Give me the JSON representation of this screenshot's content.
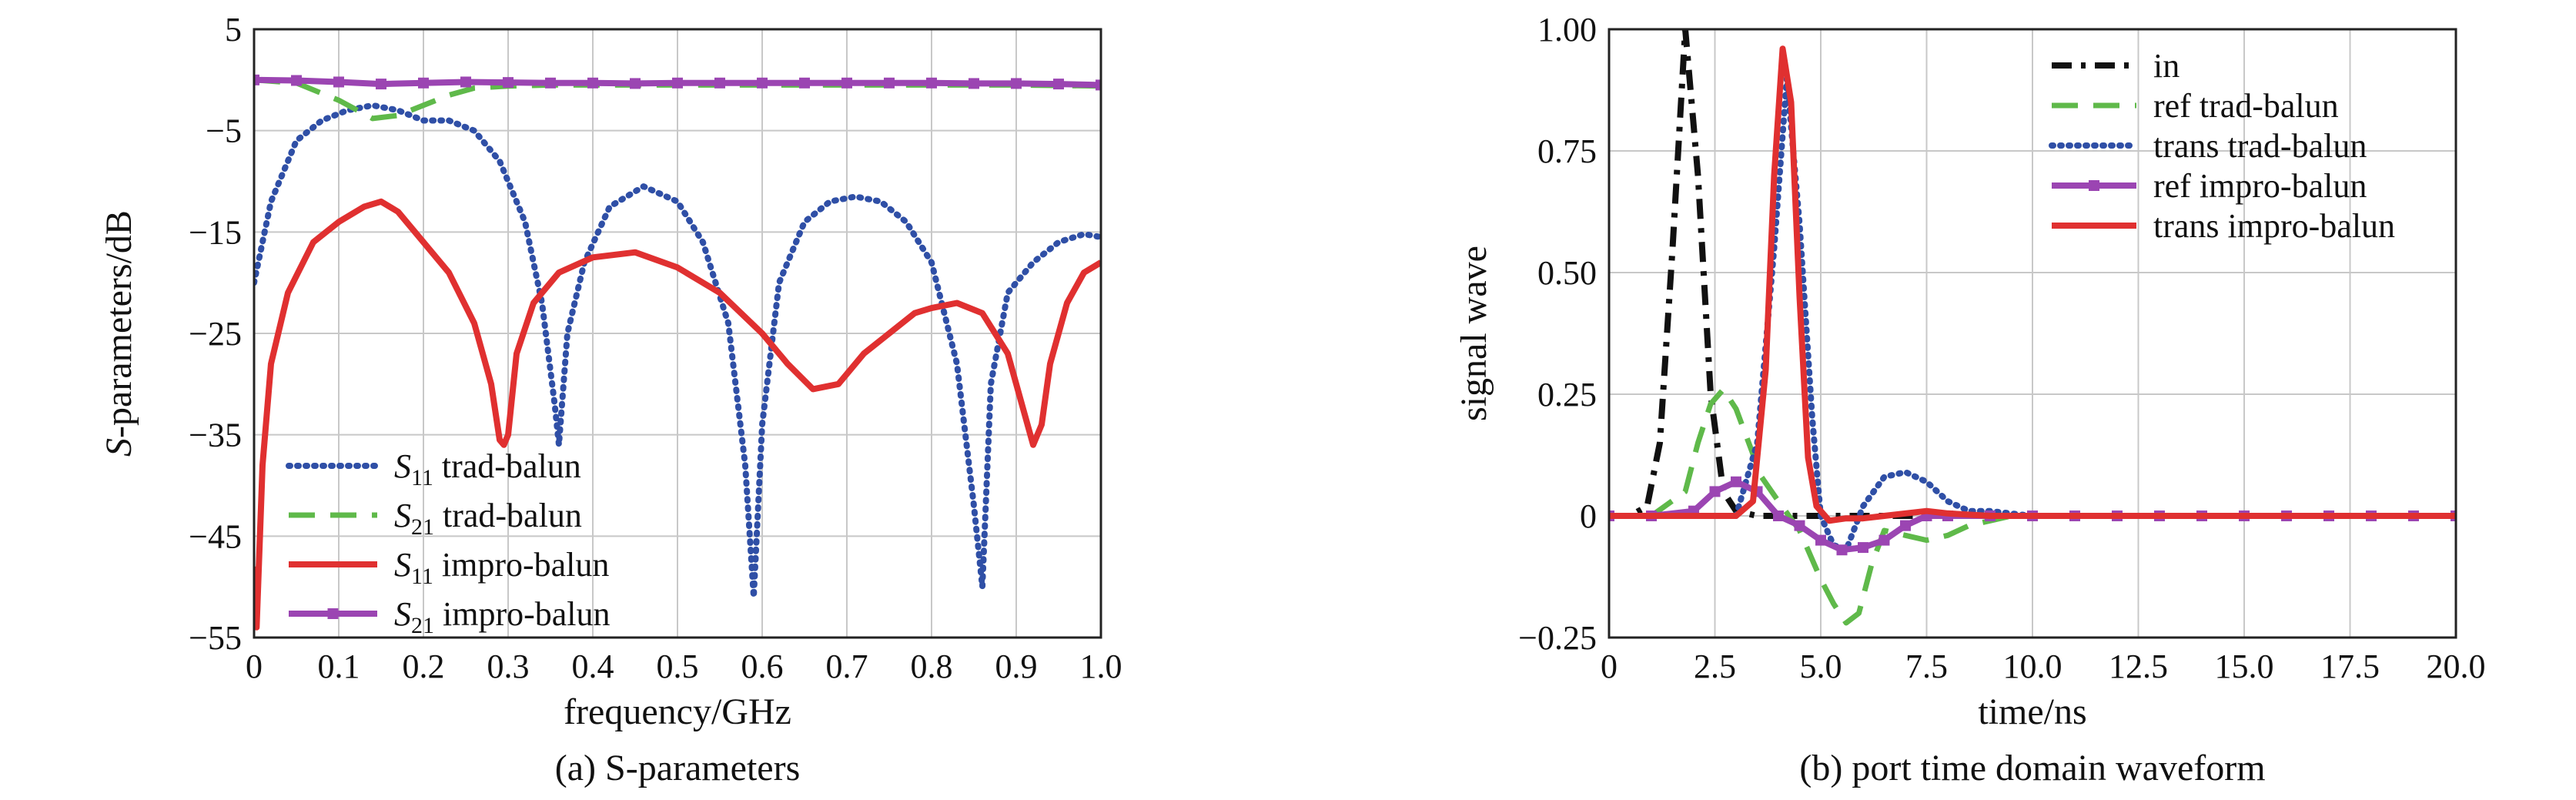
{
  "chart_data": [
    {
      "type": "line",
      "caption": "(a) S-parameters",
      "xlabel": "frequency/GHz",
      "ylabel": "S-parameters/dB",
      "ylabel_italic_part": "S",
      "ylabel_rest": "-parameters/dB",
      "xlim": [
        0,
        1.0
      ],
      "ylim": [
        -55,
        5
      ],
      "xticks": [
        0,
        0.1,
        0.2,
        0.3,
        0.4,
        0.5,
        0.6,
        0.7,
        0.8,
        0.9,
        1.0
      ],
      "xtick_labels": [
        "0",
        "0.1",
        "0.2",
        "0.3",
        "0.4",
        "0.5",
        "0.6",
        "0.7",
        "0.8",
        "0.9",
        "1.0"
      ],
      "yticks": [
        5,
        -5,
        -15,
        -25,
        -35,
        -45,
        -55
      ],
      "ytick_labels": [
        "5",
        "−5",
        "−15",
        "−25",
        "−35",
        "−45",
        "−55"
      ],
      "grid": true,
      "legend_position": "bottom-left",
      "series": [
        {
          "name": "S11 trad-balun",
          "legend_sym": "S",
          "legend_sub": "11",
          "legend_rest": "trad-balun",
          "color": "#2f4fa6",
          "style": "dotted",
          "x": [
            0,
            0.02,
            0.05,
            0.08,
            0.11,
            0.14,
            0.17,
            0.2,
            0.23,
            0.26,
            0.29,
            0.32,
            0.34,
            0.355,
            0.36,
            0.37,
            0.39,
            0.42,
            0.46,
            0.5,
            0.53,
            0.56,
            0.58,
            0.59,
            0.6,
            0.62,
            0.65,
            0.68,
            0.71,
            0.74,
            0.77,
            0.8,
            0.83,
            0.85,
            0.86,
            0.87,
            0.89,
            0.92,
            0.95,
            0.98,
            1.0
          ],
          "y": [
            -20,
            -12,
            -6,
            -4,
            -3,
            -2.5,
            -3,
            -4,
            -4,
            -5,
            -8,
            -14,
            -22,
            -32,
            -36,
            -25,
            -18,
            -12.5,
            -10.5,
            -12,
            -16,
            -24,
            -38,
            -51,
            -34,
            -20,
            -14,
            -12,
            -11.5,
            -12,
            -14,
            -18,
            -28,
            -42,
            -50,
            -30,
            -21,
            -18,
            -16,
            -15.2,
            -15.5
          ]
        },
        {
          "name": "S21 trad-balun",
          "legend_sym": "S",
          "legend_sub": "21",
          "legend_rest": "trad-balun",
          "color": "#5fb94a",
          "style": "dashed",
          "x": [
            0,
            0.05,
            0.1,
            0.14,
            0.17,
            0.2,
            0.23,
            0.26,
            0.3,
            0.35,
            0.4,
            0.5,
            0.6,
            0.7,
            0.8,
            0.9,
            1.0
          ],
          "y": [
            0,
            -0.3,
            -2,
            -3.8,
            -3.5,
            -2.5,
            -1.5,
            -0.8,
            -0.6,
            -0.5,
            -0.5,
            -0.5,
            -0.5,
            -0.5,
            -0.5,
            -0.5,
            -0.6
          ]
        },
        {
          "name": "S11 impro-balun",
          "legend_sym": "S",
          "legend_sub": "11",
          "legend_rest": "impro-balun",
          "color": "#e03030",
          "style": "solid",
          "x": [
            0,
            0.003,
            0.01,
            0.02,
            0.04,
            0.07,
            0.1,
            0.13,
            0.15,
            0.17,
            0.2,
            0.23,
            0.26,
            0.28,
            0.29,
            0.295,
            0.3,
            0.31,
            0.33,
            0.36,
            0.4,
            0.45,
            0.5,
            0.55,
            0.6,
            0.63,
            0.66,
            0.69,
            0.72,
            0.75,
            0.78,
            0.8,
            0.83,
            0.86,
            0.89,
            0.91,
            0.92,
            0.93,
            0.94,
            0.96,
            0.98,
            1.0
          ],
          "y": [
            -48,
            -54,
            -38,
            -28,
            -21,
            -16,
            -14,
            -12.5,
            -12,
            -13,
            -16,
            -19,
            -24,
            -30,
            -35.5,
            -36,
            -35,
            -27,
            -22,
            -19,
            -17.5,
            -17,
            -18.5,
            -21,
            -25,
            -28,
            -30.5,
            -30,
            -27,
            -25,
            -23,
            -22.5,
            -22,
            -23,
            -27,
            -33,
            -36,
            -34,
            -28,
            -22,
            -19,
            -18
          ]
        },
        {
          "name": "S21 impro-balun",
          "legend_sym": "S",
          "legend_sub": "21",
          "legend_rest": "impro-balun",
          "color": "#9b45b2",
          "style": "solid-markers",
          "x": [
            0,
            0.05,
            0.1,
            0.15,
            0.2,
            0.25,
            0.3,
            0.35,
            0.4,
            0.45,
            0.5,
            0.55,
            0.6,
            0.65,
            0.7,
            0.75,
            0.8,
            0.85,
            0.9,
            0.95,
            1.0
          ],
          "y": [
            0,
            -0.05,
            -0.2,
            -0.4,
            -0.3,
            -0.2,
            -0.25,
            -0.3,
            -0.3,
            -0.35,
            -0.3,
            -0.3,
            -0.3,
            -0.3,
            -0.3,
            -0.3,
            -0.3,
            -0.35,
            -0.35,
            -0.4,
            -0.5
          ]
        }
      ]
    },
    {
      "type": "line",
      "caption": "(b) port time domain waveform",
      "xlabel": "time/ns",
      "ylabel": "signal wave",
      "xlim": [
        0,
        20.0
      ],
      "ylim": [
        -0.25,
        1.0
      ],
      "xticks": [
        0,
        2.5,
        5.0,
        7.5,
        10.0,
        12.5,
        15.0,
        17.5,
        20.0
      ],
      "xtick_labels": [
        "0",
        "2.5",
        "5.0",
        "7.5",
        "10.0",
        "12.5",
        "15.0",
        "17.5",
        "20.0"
      ],
      "yticks": [
        1.0,
        0.75,
        0.5,
        0.25,
        0,
        -0.25
      ],
      "ytick_labels": [
        "1.00",
        "0.75",
        "0.50",
        "0.25",
        "0",
        "−0.25"
      ],
      "grid": true,
      "legend_position": "top-right",
      "series": [
        {
          "name": "in",
          "color": "#111111",
          "style": "dashdot",
          "x": [
            0,
            0.5,
            0.9,
            1.2,
            1.5,
            1.8,
            2.1,
            2.4,
            2.7,
            3.0,
            3.5,
            5,
            10,
            20
          ],
          "y": [
            0,
            0,
            0.02,
            0.15,
            0.55,
            1.0,
            0.7,
            0.25,
            0.05,
            0.01,
            0,
            0,
            0,
            0
          ]
        },
        {
          "name": "ref trad-balun",
          "color": "#5fb94a",
          "style": "dashed",
          "x": [
            0,
            1,
            1.8,
            2.1,
            2.4,
            2.7,
            3.0,
            3.3,
            3.6,
            4.0,
            4.5,
            5.0,
            5.3,
            5.6,
            5.9,
            6.2,
            6.5,
            7.0,
            7.5,
            8.0,
            8.5,
            9.0,
            9.5,
            10.0,
            12.0,
            15.0,
            20.0
          ],
          "y": [
            0,
            0,
            0.05,
            0.15,
            0.23,
            0.26,
            0.22,
            0.15,
            0.08,
            0.03,
            -0.03,
            -0.13,
            -0.18,
            -0.22,
            -0.2,
            -0.1,
            -0.03,
            -0.04,
            -0.05,
            -0.04,
            -0.02,
            -0.01,
            0,
            0,
            0,
            0,
            0
          ]
        },
        {
          "name": "trans trad-balun",
          "color": "#2f4fa6",
          "style": "dotted",
          "x": [
            0,
            3.0,
            3.5,
            3.9,
            4.2,
            4.5,
            4.8,
            5.0,
            5.3,
            5.6,
            6.0,
            6.5,
            7.0,
            7.5,
            8.0,
            8.5,
            9.0,
            10.0,
            12.0,
            15.0,
            20.0
          ],
          "y": [
            0,
            0,
            0.15,
            0.55,
            0.9,
            0.6,
            0.2,
            0.0,
            -0.06,
            -0.07,
            0.02,
            0.08,
            0.09,
            0.07,
            0.03,
            0.01,
            0.01,
            0.0,
            0.0,
            0.0,
            0.0
          ]
        },
        {
          "name": "ref impro-balun",
          "color": "#9b45b2",
          "style": "solid-markers",
          "x": [
            0,
            1.0,
            2.0,
            2.5,
            3.0,
            3.5,
            4.0,
            4.5,
            5.0,
            5.5,
            6.0,
            6.5,
            7.0,
            7.5,
            8.0,
            9.0,
            10.0,
            11.0,
            12.0,
            13.0,
            14.0,
            15.0,
            16.0,
            17.0,
            18.0,
            19.0,
            20.0
          ],
          "y": [
            0,
            0,
            0.01,
            0.05,
            0.07,
            0.05,
            0.0,
            -0.02,
            -0.05,
            -0.07,
            -0.065,
            -0.05,
            -0.02,
            0.0,
            0.0,
            0.0,
            0.0,
            0.0,
            0.0,
            0.0,
            0.0,
            0.0,
            0.0,
            0.0,
            0.0,
            0.0,
            0.0
          ]
        },
        {
          "name": "trans impro-balun",
          "color": "#e03030",
          "style": "solid",
          "x": [
            0,
            3.0,
            3.4,
            3.7,
            3.9,
            4.1,
            4.3,
            4.5,
            4.7,
            4.9,
            5.2,
            5.6,
            6.0,
            6.5,
            7.0,
            7.5,
            8.0,
            9.0,
            10.0,
            12.0,
            15.0,
            20.0
          ],
          "y": [
            0,
            0,
            0.03,
            0.3,
            0.7,
            0.96,
            0.85,
            0.45,
            0.12,
            0.02,
            -0.01,
            -0.005,
            -0.005,
            0.0,
            0.005,
            0.01,
            0.005,
            0.0,
            0.0,
            0.0,
            0.0,
            0.0
          ]
        }
      ]
    }
  ]
}
